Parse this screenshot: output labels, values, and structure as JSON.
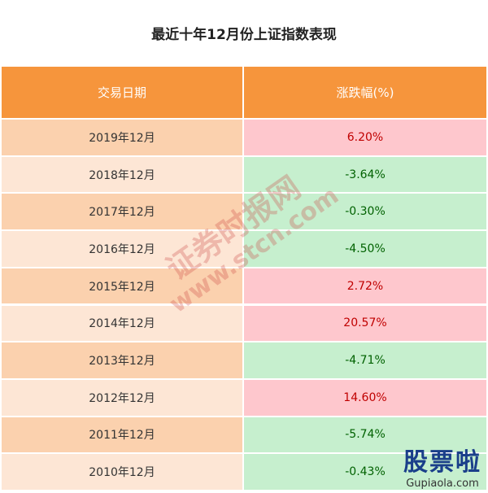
{
  "title": "最近十年12月份上证指数表现",
  "table": {
    "header": [
      "交易日期",
      "涨跌幅(%)"
    ],
    "rows": [
      [
        "2019年12月",
        "6.20%"
      ],
      [
        "2018年12月",
        "-3.64%"
      ],
      [
        "2017年12月",
        "-0.30%"
      ],
      [
        "2016年12月",
        "-4.50%"
      ],
      [
        "2015年12月",
        "2.72%"
      ],
      [
        "2014年12月",
        "20.57%"
      ],
      [
        "2013年12月",
        "-4.71%"
      ],
      [
        "2012年12月",
        "14.60%"
      ],
      [
        "2011年12月",
        "-5.74%"
      ],
      [
        "2010年12月",
        "-0.43%"
      ]
    ]
  },
  "watermark": {
    "name": "证券时报网",
    "url": "www.stcn.com"
  },
  "logo": {
    "name": "股票啦",
    "url": "Gupiaola.com"
  }
}
